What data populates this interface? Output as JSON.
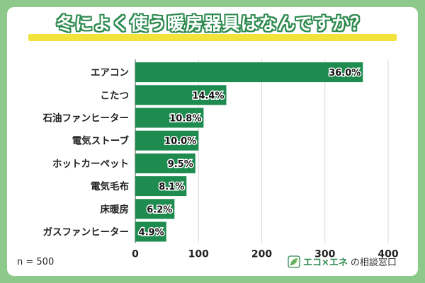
{
  "colors": {
    "bar": "#1e8b4f",
    "accent": "#2e8a4f",
    "highlight": "#f2e33a",
    "background": "#8cc98a"
  },
  "sample_note": "n = 500",
  "brand": {
    "name_highlight": "エコ×エネ",
    "name_rest": "の相談窓口",
    "icon": "leaf-icon"
  },
  "chart_data": {
    "type": "bar",
    "orientation": "horizontal",
    "title": "冬によく使う暖房器具はなんですか？",
    "categories": [
      "エアコン",
      "こたつ",
      "石油ファンヒーター",
      "電気ストーブ",
      "ホットカーペット",
      "電気毛布",
      "床暖房",
      "ガスファンヒーター"
    ],
    "values": [
      36.0,
      14.4,
      10.8,
      10.0,
      9.5,
      8.1,
      6.2,
      4.9
    ],
    "value_labels": [
      "36.0%",
      "14.4%",
      "10.8%",
      "10.0%",
      "9.5%",
      "8.1%",
      "6.2%",
      "4.9%"
    ],
    "xlim": [
      0,
      400
    ],
    "xticks": [
      0,
      100,
      200,
      300,
      400
    ],
    "grid": true
  }
}
